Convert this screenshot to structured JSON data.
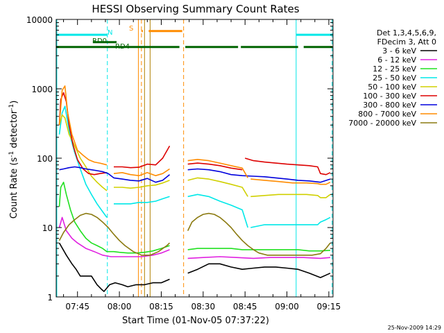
{
  "chart_data": {
    "type": "line",
    "title": "HESSI Observing Summary Count Rates",
    "xlabel": "Start Time (01-Nov-05 07:37:22)",
    "ylabel_main": "Count Rate (s",
    "ylabel_sup1": "-1",
    "ylabel_mid": " detector",
    "ylabel_sup2": "-1",
    "ylabel_end": ")",
    "y_scale": "log",
    "ylim": [
      1,
      10000
    ],
    "xlim_minutes": [
      37.37,
      136.5
    ],
    "x_ticks": [
      {
        "label": "07:45",
        "minute": 45
      },
      {
        "label": "08:00",
        "minute": 60
      },
      {
        "label": "08:15",
        "minute": 75
      },
      {
        "label": "08:30",
        "minute": 90
      },
      {
        "label": "08:45",
        "minute": 105
      },
      {
        "label": "09:00",
        "minute": 120
      },
      {
        "label": "09:15",
        "minute": 135
      }
    ],
    "y_ticks": [
      {
        "label": "1",
        "value": 1
      },
      {
        "label": "10",
        "value": 10
      },
      {
        "label": "100",
        "value": 100
      },
      {
        "label": "1000",
        "value": 1000
      },
      {
        "label": "10000",
        "value": 10000
      }
    ],
    "legend": {
      "position": "right",
      "header1": "Det 1,3,4,5,6,9,",
      "header2": "FDecim 3, Att 0",
      "entries": [
        {
          "label": "3 - 6 keV",
          "color": "#000000"
        },
        {
          "label": "6 - 12 keV",
          "color": "#e020e0"
        },
        {
          "label": "12 - 25 keV",
          "color": "#20e020"
        },
        {
          "label": "25 - 50 keV",
          "color": "#00e8e8"
        },
        {
          "label": "50 - 100 keV",
          "color": "#d0d000"
        },
        {
          "label": "100 - 300 keV",
          "color": "#dd0000"
        },
        {
          "label": "300 - 800 keV",
          "color": "#0000dd"
        },
        {
          "label": "800 - 7000 keV",
          "color": "#ff8c00"
        },
        {
          "label": "7000 - 20000 keV",
          "color": "#8b7a10"
        }
      ]
    },
    "flag_labels": {
      "n": "N",
      "s": "S",
      "rd0": "RD0",
      "rd4": "RD4"
    },
    "vertical_markers": [
      {
        "minute": 37.6,
        "color": "#00e8e8",
        "style": "solid"
      },
      {
        "minute": 55.7,
        "color": "#00e8e8",
        "style": "dashed"
      },
      {
        "minute": 66.8,
        "color": "#ff8c00",
        "style": "solid"
      },
      {
        "minute": 67.9,
        "color": "#ff8c00",
        "style": "dashed"
      },
      {
        "minute": 69.0,
        "color": "#b08000",
        "style": "solid"
      },
      {
        "minute": 71.0,
        "color": "#b08000",
        "style": "solid"
      },
      {
        "minute": 83.0,
        "color": "#ff8c00",
        "style": "dashed"
      },
      {
        "minute": 123.3,
        "color": "#00e8e8",
        "style": "solid"
      },
      {
        "minute": 136.2,
        "color": "#00e8e8",
        "style": "dashed"
      }
    ],
    "flag_bars": [
      {
        "id": "night",
        "color": "#00e8e8",
        "value": 6000,
        "segments": [
          [
            37.4,
            55.7
          ],
          [
            123.3,
            136.3
          ]
        ]
      },
      {
        "id": "saa",
        "color": "#ff8c00",
        "value": 6800,
        "segments": [
          [
            67.9,
            68.4
          ],
          [
            70.5,
            82.5
          ]
        ]
      },
      {
        "id": "rd0",
        "color": "#006400",
        "value": 4700,
        "segments": [
          [
            50.5,
            59.0
          ]
        ]
      },
      {
        "id": "rd4",
        "color": "#006400",
        "value": 4000,
        "segments": [
          [
            37.4,
            81.5
          ],
          [
            83.6,
            102.5
          ],
          [
            103.5,
            124.0
          ],
          [
            126.0,
            136.3
          ]
        ]
      }
    ],
    "series": [
      {
        "label": "3 - 6 keV",
        "color": "#000000",
        "segments": [
          {
            "x": [
              38.5,
              41.0,
              43.0,
              44.5,
              46.0,
              48.0,
              50.0,
              52.0,
              53.5,
              54.5,
              56.5,
              58.5,
              61.0,
              63.0,
              66.0,
              69.0,
              72.0,
              75.0,
              78.0
            ],
            "y": [
              6,
              4,
              3,
              2.5,
              2,
              2,
              2,
              1.5,
              1.3,
              1.2,
              1.5,
              1.6,
              1.5,
              1.4,
              1.5,
              1.5,
              1.6,
              1.6,
              1.8
            ]
          },
          {
            "x": [
              84.5,
              88.0,
              92.0,
              96.0,
              100.0,
              104.0,
              108.0,
              112.0,
              116.0,
              120.0,
              124.0,
              128.0,
              132.0,
              135.5
            ],
            "y": [
              2.2,
              2.5,
              3,
              3,
              2.7,
              2.5,
              2.6,
              2.7,
              2.7,
              2.6,
              2.5,
              2.2,
              1.9,
              2.2
            ]
          }
        ]
      },
      {
        "label": "6 - 12 keV",
        "color": "#e020e0",
        "segments": [
          {
            "x": [
              38.5,
              39.5,
              41.0,
              43.0,
              45.0,
              48.0,
              51.0,
              54.0,
              57.0,
              60.0,
              64.0,
              68.0,
              72.0,
              75.0,
              78.0
            ],
            "y": [
              10,
              14,
              9,
              7,
              6,
              5,
              4.5,
              4,
              3.8,
              3.8,
              3.8,
              3.8,
              4,
              4.3,
              4.8
            ]
          },
          {
            "x": [
              84.5,
              90.0,
              96.0,
              102.0,
              108.0,
              114.0,
              120.0,
              126.0,
              132.0,
              135.5
            ],
            "y": [
              3.6,
              3.7,
              3.8,
              3.7,
              3.6,
              3.7,
              3.7,
              3.7,
              3.6,
              3.7
            ]
          }
        ]
      },
      {
        "label": "12 - 25 keV",
        "color": "#20e020",
        "segments": [
          {
            "x": [
              38.5,
              39.0,
              40.0,
              41.0,
              42.5,
              44.0,
              46.0,
              48.0,
              50.0,
              52.0,
              54.0,
              55.5,
              56.5,
              58.0,
              60.0,
              63.0,
              66.0,
              69.0,
              72.0,
              75.0,
              78.0
            ],
            "y": [
              20,
              38,
              45,
              30,
              18,
              12,
              9,
              7,
              6,
              5.5,
              5,
              4.5,
              4.5,
              4.5,
              4.4,
              4.3,
              4.3,
              4.4,
              4.6,
              5,
              5.5
            ]
          },
          {
            "x": [
              84.5,
              88.0,
              92.0,
              96.0,
              100.0,
              104.0,
              108.0,
              112.0,
              116.0,
              120.0,
              124.0,
              128.0,
              132.0,
              135.5
            ],
            "y": [
              4.8,
              5,
              5,
              5,
              5,
              4.8,
              4.8,
              4.8,
              4.8,
              4.8,
              4.8,
              4.6,
              4.6,
              4.7
            ]
          }
        ]
      },
      {
        "label": "25 - 50 keV",
        "color": "#00e8e8",
        "segments": [
          {
            "x": [
              38.5,
              39.5,
              40.5,
              41.5,
              42.5,
              44.0,
              46.0,
              48.0,
              50.0,
              52.0,
              54.0,
              55.5
            ],
            "y": [
              220,
              450,
              560,
              330,
              200,
              120,
              70,
              42,
              30,
              22,
              17,
              14
            ]
          },
          {
            "x": [
              58.0,
              61.0,
              64.0,
              67.0,
              70.0,
              73.0,
              75.5,
              78.0
            ],
            "y": [
              22,
              22,
              22,
              23,
              23,
              24,
              26,
              28
            ]
          },
          {
            "x": [
              84.5,
              88.0,
              92.0,
              96.0,
              100.0,
              104.0,
              106.0
            ],
            "y": [
              28,
              30,
              28,
              24,
              21,
              18,
              10
            ]
          },
          {
            "x": [
              107.0,
              112.0,
              117.0,
              122.0,
              127.0,
              131.0,
              132.0,
              134.0,
              135.5
            ],
            "y": [
              10,
              11,
              11,
              11,
              11,
              11,
              12,
              13,
              14
            ]
          }
        ]
      },
      {
        "label": "50 - 100 keV",
        "color": "#d0d000",
        "segments": [
          {
            "x": [
              38.5,
              39.5,
              40.5,
              42.0,
              44.0,
              46.0,
              48.0,
              50.0,
              52.0,
              54.0,
              55.5
            ],
            "y": [
              300,
              420,
              380,
              220,
              150,
              100,
              75,
              55,
              45,
              38,
              34
            ]
          },
          {
            "x": [
              58.0,
              61.0,
              64.0,
              67.0,
              70.0,
              73.0,
              75.5,
              78.0
            ],
            "y": [
              38,
              38,
              37,
              38,
              40,
              41,
              44,
              48
            ]
          },
          {
            "x": [
              84.5,
              88.0,
              92.0,
              96.0,
              100.0,
              104.0,
              106.0
            ],
            "y": [
              48,
              52,
              50,
              46,
              42,
              38,
              28
            ]
          },
          {
            "x": [
              107.0,
              112.0,
              117.0,
              122.0,
              127.0,
              131.0,
              132.0,
              134.0,
              135.5
            ],
            "y": [
              28,
              29,
              30,
              30,
              30,
              29,
              27,
              27,
              30
            ]
          }
        ]
      },
      {
        "label": "100 - 300 keV",
        "color": "#dd0000",
        "segments": [
          {
            "x": [
              38.5,
              39.0,
              40.0,
              41.0,
              42.0,
              43.5,
              45.0,
              47.0,
              49.0,
              51.0,
              53.0,
              55.5
            ],
            "y": [
              300,
              700,
              880,
              650,
              300,
              150,
              95,
              70,
              60,
              58,
              60,
              62
            ]
          },
          {
            "x": [
              58.0,
              61.0,
              64.0,
              67.0,
              70.0,
              73.0,
              75.5,
              78.0
            ],
            "y": [
              75,
              75,
              73,
              74,
              82,
              80,
              100,
              150
            ]
          },
          {
            "x": [
              84.5,
              88.0,
              92.0,
              96.0,
              100.0,
              104.0
            ],
            "y": [
              82,
              85,
              82,
              78,
              72,
              68
            ]
          },
          {
            "x": [
              105.0,
              108.0,
              112.0,
              116.0,
              120.0,
              124.0,
              128.0,
              131.0,
              132.0,
              134.0,
              135.5
            ],
            "y": [
              100,
              92,
              88,
              85,
              82,
              80,
              78,
              75,
              60,
              58,
              62
            ]
          }
        ]
      },
      {
        "label": "300 - 800 keV",
        "color": "#0000dd",
        "segments": [
          {
            "x": [
              38.5,
              40.0,
              42.0,
              44.0,
              46.0,
              48.0,
              50.0,
              52.0,
              54.0,
              56.0,
              58.0,
              61.0,
              64.0,
              67.0,
              70.0,
              73.0,
              75.5,
              78.0
            ],
            "y": [
              68,
              70,
              73,
              75,
              73,
              70,
              68,
              66,
              64,
              60,
              52,
              50,
              48,
              47,
              51,
              45,
              48,
              58
            ]
          },
          {
            "x": [
              84.5,
              88.0,
              92.0,
              96.0,
              100.0,
              104.0,
              108.0,
              112.0,
              116.0,
              120.0,
              124.0,
              128.0,
              132.0,
              135.5
            ],
            "y": [
              68,
              70,
              68,
              64,
              58,
              56,
              55,
              54,
              52,
              50,
              48,
              47,
              45,
              50
            ]
          }
        ]
      },
      {
        "label": "800 - 7000 keV",
        "color": "#ff8c00",
        "segments": [
          {
            "x": [
              38.5,
              39.5,
              40.5,
              41.5,
              43.0,
              45.0,
              47.0,
              49.0,
              51.0,
              53.0,
              55.5
            ],
            "y": [
              300,
              950,
              1100,
              450,
              220,
              130,
              110,
              95,
              88,
              85,
              80
            ]
          },
          {
            "x": [
              58.0,
              61.0,
              64.0,
              67.0,
              70.0,
              73.0,
              75.5,
              78.0
            ],
            "y": [
              60,
              62,
              58,
              56,
              62,
              56,
              60,
              70
            ]
          },
          {
            "x": [
              84.5,
              88.0,
              92.0,
              96.0,
              100.0,
              104.0,
              106.0
            ],
            "y": [
              92,
              96,
              92,
              85,
              78,
              72,
              52
            ]
          },
          {
            "x": [
              107.0,
              112.0,
              117.0,
              122.0,
              127.0,
              131.0,
              132.0,
              134.0,
              135.5
            ],
            "y": [
              50,
              48,
              46,
              44,
              44,
              43,
              42,
              42,
              45
            ]
          }
        ]
      },
      {
        "label": "7000 - 20000 keV",
        "color": "#8b7a10",
        "segments": [
          {
            "x": [
              38.5,
              40.0,
              42.0,
              44.0,
              46.0,
              48.0,
              50.0,
              52.0,
              54.0,
              56.0,
              58.0,
              60.0,
              62.0,
              65.0,
              68.0,
              71.0,
              74.0,
              77.0,
              78.0
            ],
            "y": [
              6.5,
              8.5,
              11,
              13,
              15,
              16,
              15.5,
              14,
              12,
              10,
              8,
              6.5,
              5.5,
              4.5,
              4,
              4,
              4.5,
              5.5,
              6
            ]
          },
          {
            "x": [
              84.5,
              86.0,
              88.0,
              90.0,
              92.0,
              94.0,
              96.0,
              98.0,
              100.0,
              102.0,
              104.0,
              106.0,
              108.0,
              110.0,
              113.0,
              117.0,
              121.0,
              125.0,
              129.0,
              132.0,
              134.0,
              135.5
            ],
            "y": [
              9,
              12,
              14,
              15.5,
              16,
              15.5,
              14,
              12,
              10,
              8,
              6.5,
              5.5,
              4.8,
              4.3,
              4,
              4,
              4,
              4,
              4,
              4.2,
              5,
              6
            ]
          }
        ]
      }
    ],
    "timestamp": "25-Nov-2009 14:29"
  }
}
